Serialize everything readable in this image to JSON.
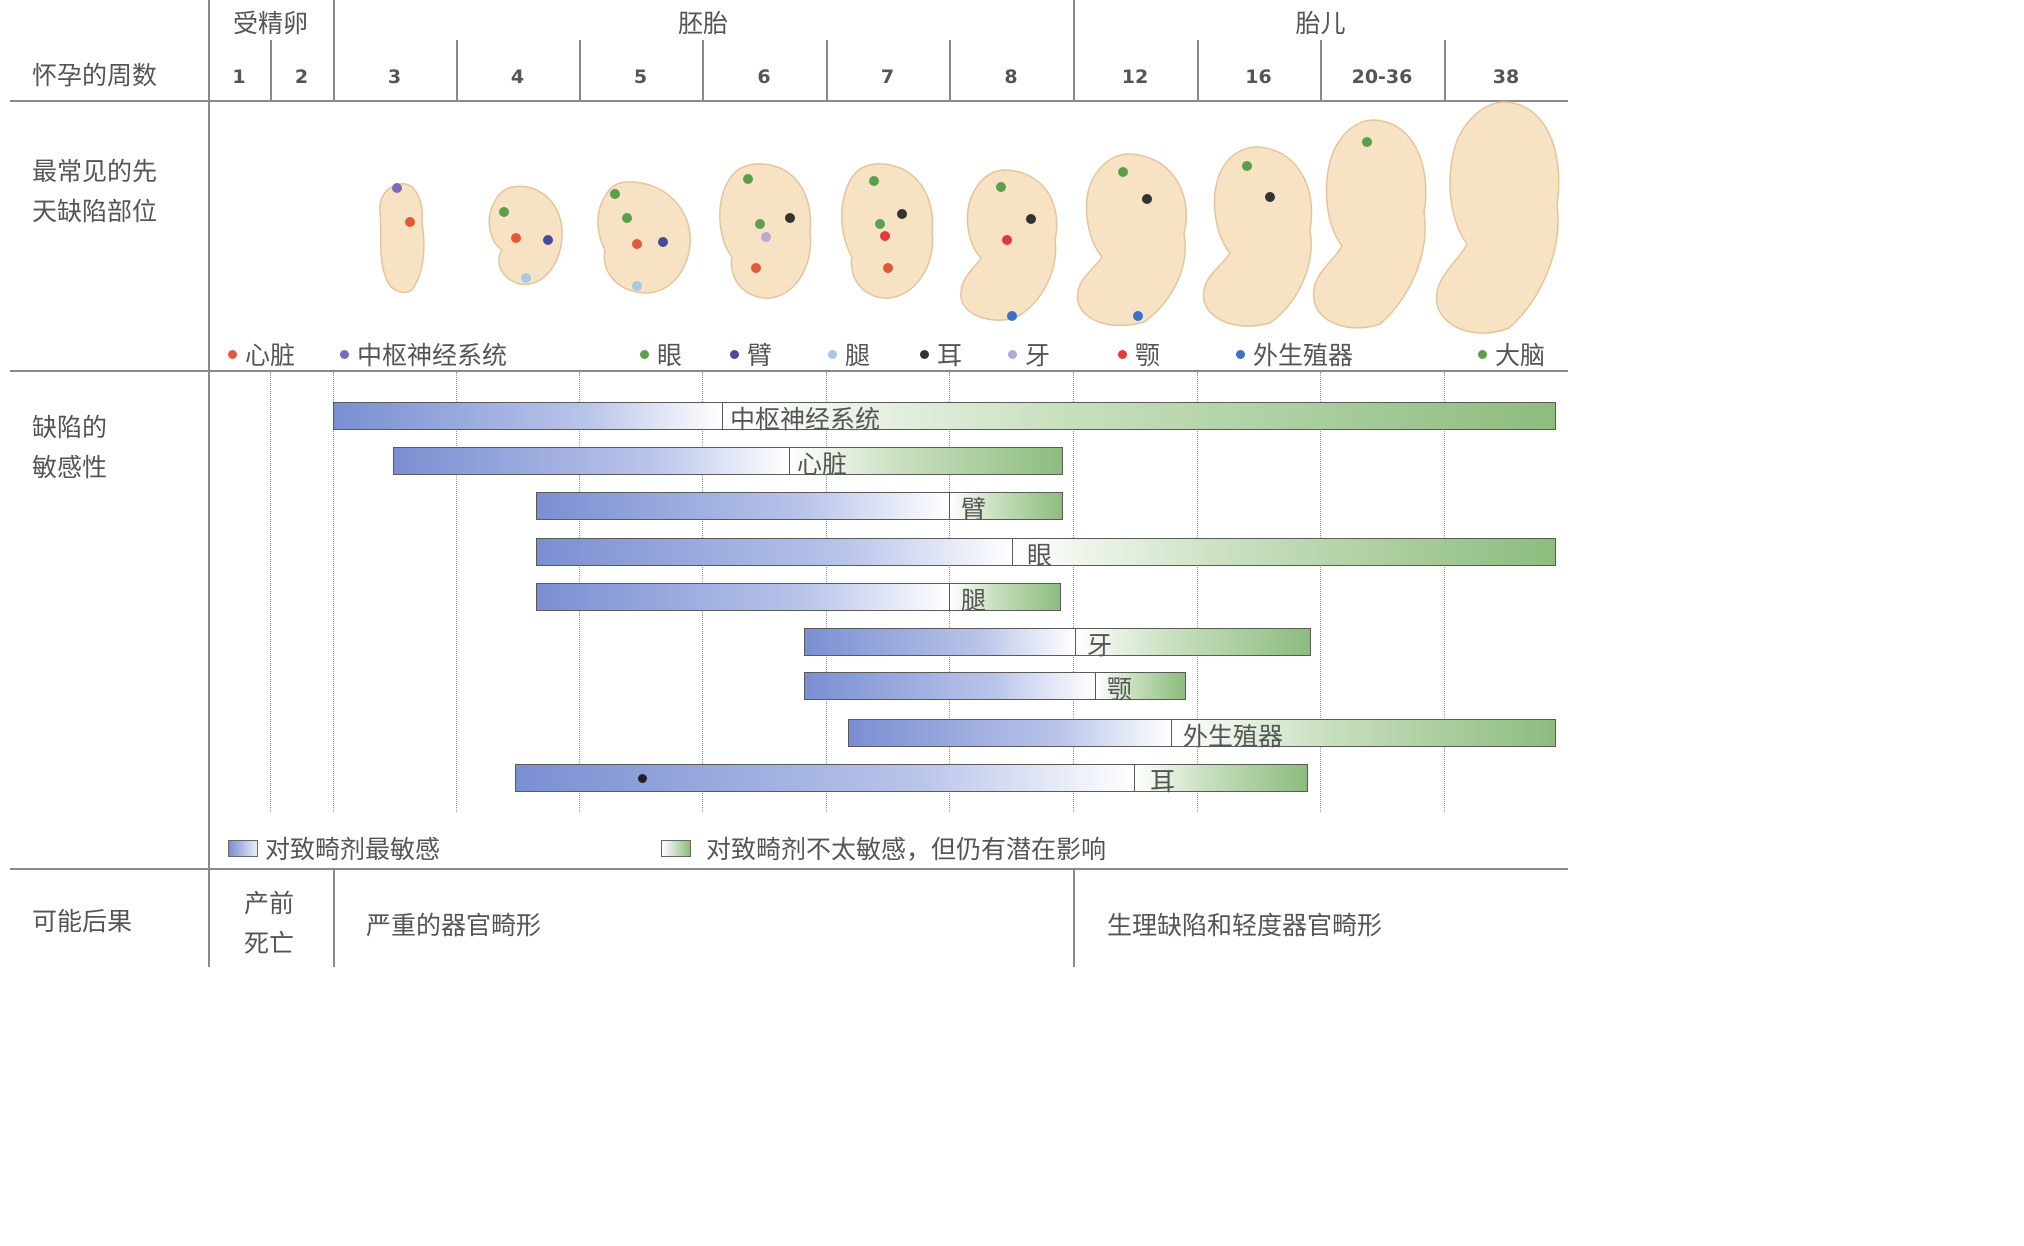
{
  "stages": {
    "fertilized_egg": "受精卵",
    "embryo": "胚胎",
    "fetus": "胎儿"
  },
  "row_labels": {
    "weeks": "怀孕的周数",
    "sites_line1": "最常见的先",
    "sites_line2": "天缺陷部位",
    "sens_line1": "缺陷的",
    "sens_line2": "敏感性",
    "outcome": "可能后果"
  },
  "weeks": [
    "1",
    "2",
    "3",
    "4",
    "5",
    "6",
    "7",
    "8",
    "12",
    "16",
    "20-36",
    "38"
  ],
  "site_legend": [
    {
      "label": "心脏",
      "color": "#e0593a"
    },
    {
      "label": "中枢神经系统",
      "color": "#7a6bb8"
    },
    {
      "label": "眼",
      "color": "#5aa04a"
    },
    {
      "label": "臂",
      "color": "#4a4a9a"
    },
    {
      "label": "腿",
      "color": "#a8c8e8"
    },
    {
      "label": "耳",
      "color": "#333333"
    },
    {
      "label": "牙",
      "color": "#b8a8d8"
    },
    {
      "label": "颚",
      "color": "#e03a3a"
    },
    {
      "label": "外生殖器",
      "color": "#3a70c8"
    },
    {
      "label": "大脑",
      "color": "#5aa04a"
    }
  ],
  "sensitivity_bars": [
    {
      "label": "中枢神经系统"
    },
    {
      "label": "心脏"
    },
    {
      "label": "臂"
    },
    {
      "label": "眼"
    },
    {
      "label": "腿"
    },
    {
      "label": "牙"
    },
    {
      "label": "颚"
    },
    {
      "label": "外生殖器"
    },
    {
      "label": "耳"
    }
  ],
  "legend": {
    "most_sensitive": "对致畸剂最敏感",
    "less_sensitive": "对致畸剂不太敏感，但仍有潜在影响"
  },
  "outcomes": {
    "prenatal_death_line1": "产前",
    "prenatal_death_line2": "死亡",
    "severe": "严重的器官畸形",
    "mild": "生理缺陷和轻度器官畸形"
  }
}
